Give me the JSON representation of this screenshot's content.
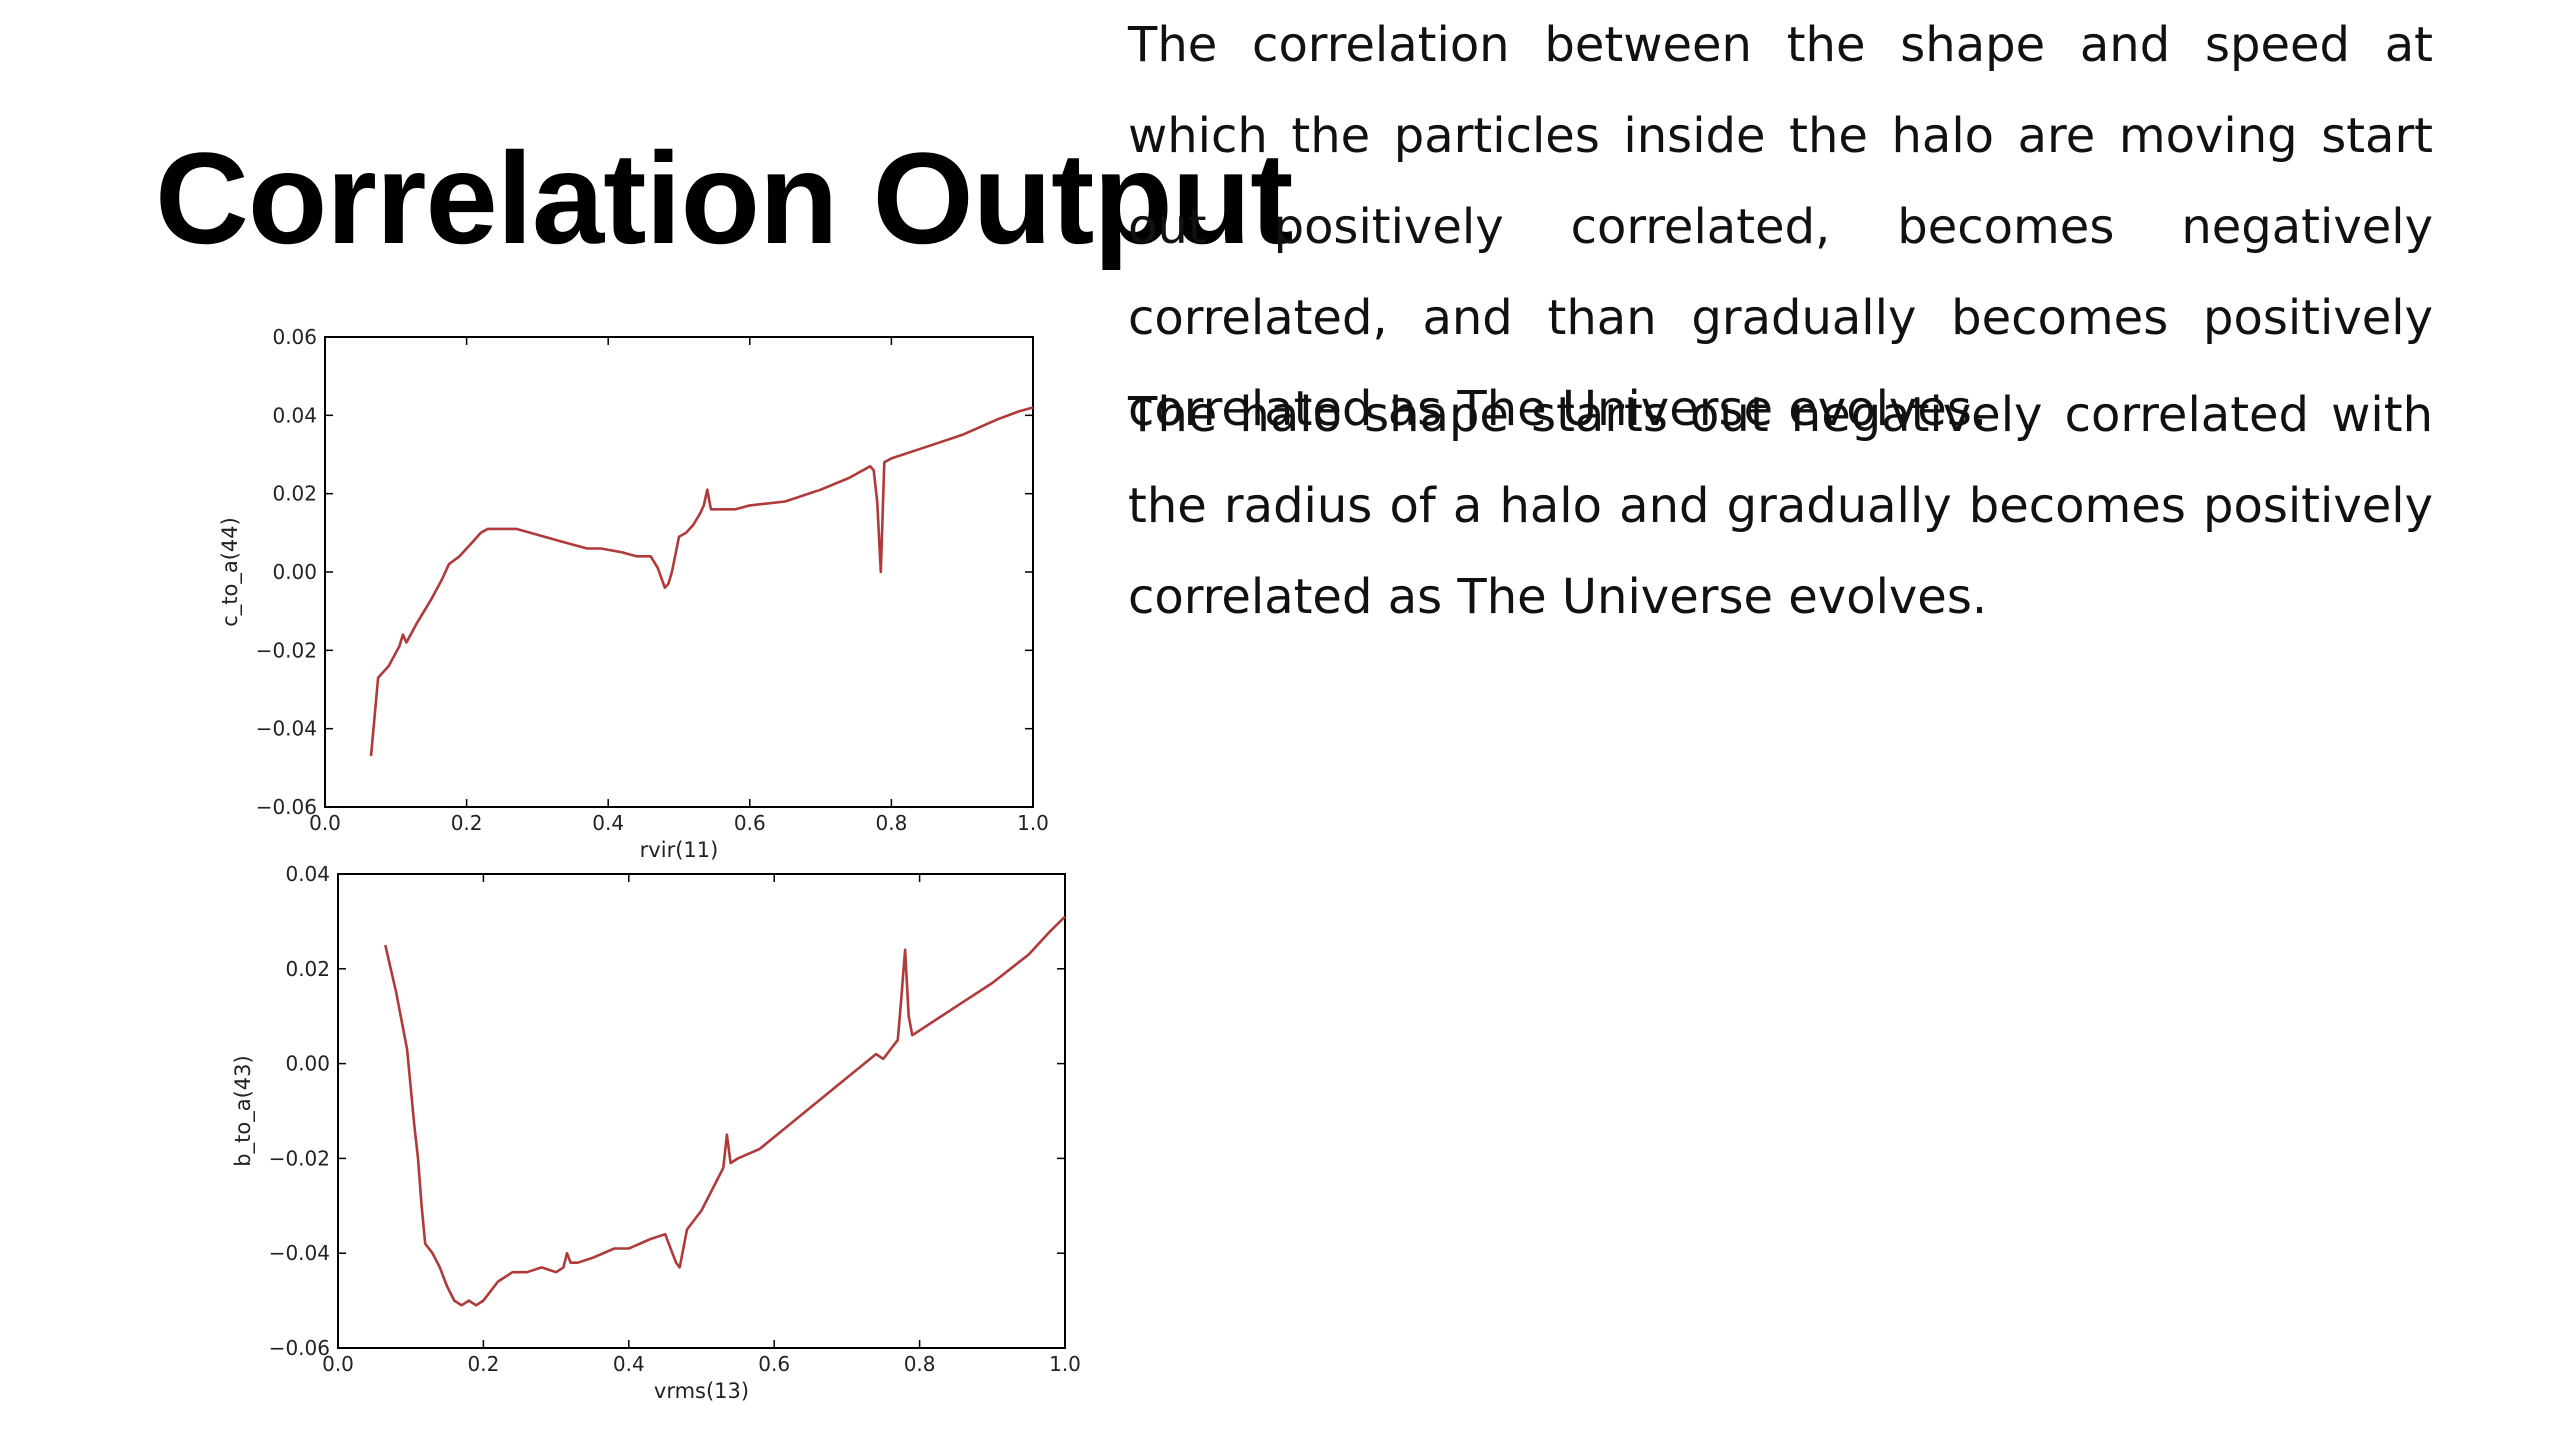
{
  "slide": {
    "title": "Correlation Output"
  },
  "text_blocks": [
    "The halo shape starts out negatively correlated with the radius of a halo and gradually becomes positively correlated as The Universe evolves.",
    "The correlation between the shape and speed at which the particles inside the halo are moving start out positively correlated, becomes negatively correlated, and than gradually becomes positively correlated as The Universe evolves."
  ],
  "chart_data": [
    {
      "type": "line",
      "title": "",
      "xlabel": "rvir(11)",
      "ylabel": "c_to_a(44)",
      "xlim": [
        0.0,
        1.0
      ],
      "ylim": [
        -0.06,
        0.06
      ],
      "xticks": [
        "0.0",
        "0.2",
        "0.4",
        "0.6",
        "0.8",
        "1.0"
      ],
      "yticks": [
        "0.06",
        "0.04",
        "0.02",
        "0.00",
        "−0.02",
        "−0.04",
        "−0.06"
      ],
      "grid": false,
      "line_color": "#b03a3a",
      "series": [
        {
          "x": [
            0.065,
            0.075,
            0.09,
            0.105,
            0.11,
            0.115,
            0.13,
            0.15,
            0.165,
            0.175,
            0.19,
            0.2,
            0.21,
            0.22,
            0.23,
            0.25,
            0.27,
            0.29,
            0.31,
            0.33,
            0.35,
            0.37,
            0.39,
            0.42,
            0.44,
            0.46,
            0.47,
            0.48,
            0.485,
            0.49,
            0.5,
            0.51,
            0.52,
            0.53,
            0.535,
            0.54,
            0.545,
            0.56,
            0.58,
            0.6,
            0.65,
            0.7,
            0.74,
            0.75,
            0.76,
            0.77,
            0.775,
            0.78,
            0.785,
            0.79,
            0.8,
            0.85,
            0.9,
            0.95,
            0.98,
            1.0
          ],
          "y": [
            -0.047,
            -0.027,
            -0.024,
            -0.019,
            -0.016,
            -0.018,
            -0.013,
            -0.007,
            -0.002,
            0.002,
            0.004,
            0.006,
            0.008,
            0.01,
            0.011,
            0.011,
            0.011,
            0.01,
            0.009,
            0.008,
            0.007,
            0.006,
            0.006,
            0.005,
            0.004,
            0.004,
            0.001,
            -0.004,
            -0.003,
            0.0,
            0.009,
            0.01,
            0.012,
            0.015,
            0.017,
            0.021,
            0.016,
            0.016,
            0.016,
            0.017,
            0.018,
            0.021,
            0.024,
            0.025,
            0.026,
            0.027,
            0.026,
            0.018,
            0.0,
            0.028,
            0.029,
            0.032,
            0.035,
            0.039,
            0.041,
            0.042
          ]
        }
      ]
    },
    {
      "type": "line",
      "title": "",
      "xlabel": "vrms(13)",
      "ylabel": "b_to_a(43)",
      "xlim": [
        0.0,
        1.0
      ],
      "ylim": [
        -0.06,
        0.04
      ],
      "xticks": [
        "0.0",
        "0.2",
        "0.4",
        "0.6",
        "0.8",
        "1.0"
      ],
      "yticks": [
        "0.04",
        "0.02",
        "0.00",
        "−0.02",
        "−0.04",
        "−0.06"
      ],
      "grid": false,
      "line_color": "#b03a3a",
      "series": [
        {
          "x": [
            0.065,
            0.08,
            0.095,
            0.105,
            0.11,
            0.115,
            0.12,
            0.13,
            0.14,
            0.15,
            0.16,
            0.17,
            0.18,
            0.19,
            0.2,
            0.21,
            0.22,
            0.24,
            0.26,
            0.28,
            0.3,
            0.31,
            0.315,
            0.32,
            0.33,
            0.35,
            0.38,
            0.4,
            0.43,
            0.45,
            0.46,
            0.465,
            0.47,
            0.48,
            0.5,
            0.52,
            0.53,
            0.535,
            0.54,
            0.55,
            0.58,
            0.62,
            0.66,
            0.7,
            0.74,
            0.75,
            0.76,
            0.77,
            0.775,
            0.78,
            0.785,
            0.79,
            0.8,
            0.85,
            0.9,
            0.95,
            0.98,
            1.0
          ],
          "y": [
            0.025,
            0.015,
            0.003,
            -0.013,
            -0.02,
            -0.03,
            -0.038,
            -0.04,
            -0.043,
            -0.047,
            -0.05,
            -0.051,
            -0.05,
            -0.051,
            -0.05,
            -0.048,
            -0.046,
            -0.044,
            -0.044,
            -0.043,
            -0.044,
            -0.043,
            -0.04,
            -0.042,
            -0.042,
            -0.041,
            -0.039,
            -0.039,
            -0.037,
            -0.036,
            -0.04,
            -0.042,
            -0.043,
            -0.035,
            -0.031,
            -0.025,
            -0.022,
            -0.015,
            -0.021,
            -0.02,
            -0.018,
            -0.013,
            -0.008,
            -0.003,
            0.002,
            0.001,
            0.003,
            0.005,
            0.014,
            0.024,
            0.01,
            0.006,
            0.007,
            0.012,
            0.017,
            0.023,
            0.028,
            0.031
          ]
        }
      ]
    }
  ]
}
